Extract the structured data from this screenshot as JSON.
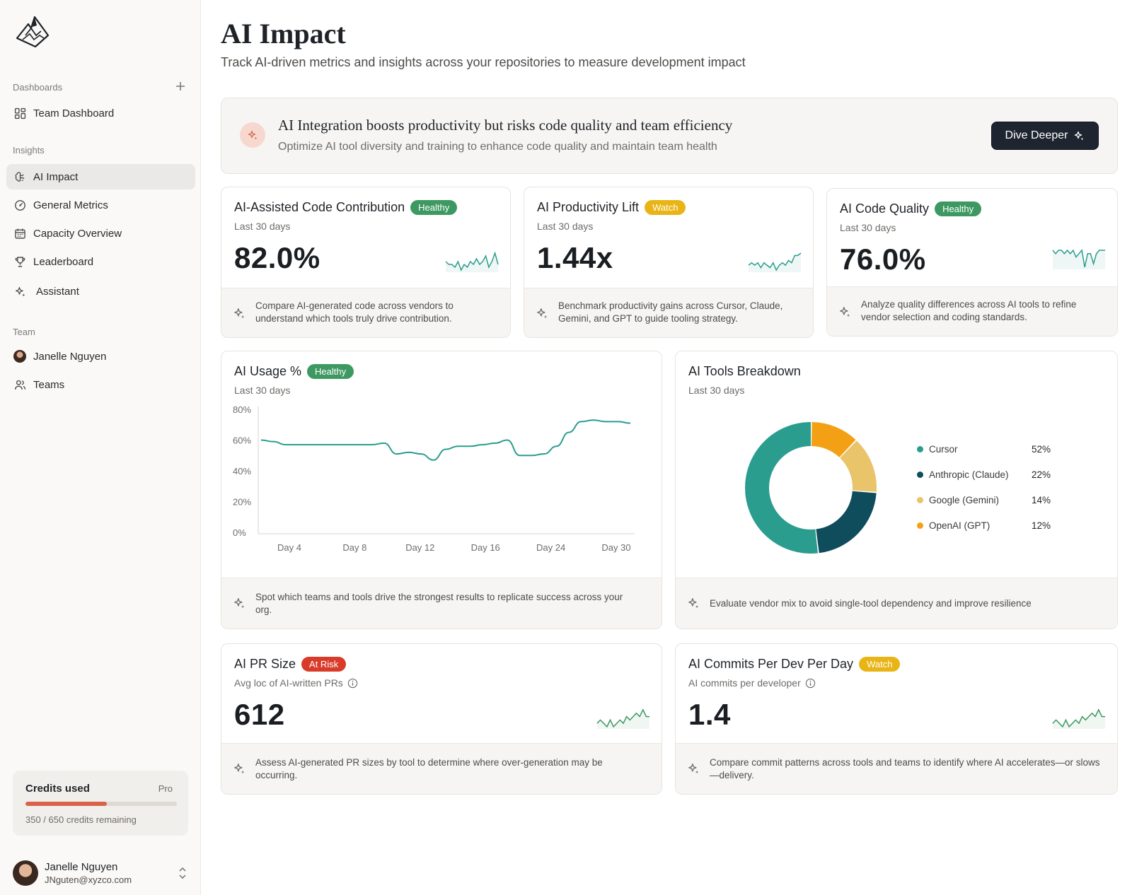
{
  "sidebar": {
    "dashboards_label": "Dashboards",
    "team_dashboard": "Team Dashboard",
    "insights_label": "Insights",
    "items": [
      {
        "label": "AI Impact",
        "icon": "brain-icon"
      },
      {
        "label": "General Metrics",
        "icon": "gauge-icon"
      },
      {
        "label": "Capacity Overview",
        "icon": "calendar-icon"
      },
      {
        "label": "Leaderboard",
        "icon": "trophy-icon"
      },
      {
        "label": "Assistant",
        "icon": "sparkle-icon"
      }
    ],
    "team_label": "Team",
    "team_items": [
      {
        "label": "Janelle Nguyen",
        "icon": "avatar"
      },
      {
        "label": "Teams",
        "icon": "users-icon"
      }
    ],
    "credits": {
      "title": "Credits used",
      "plan": "Pro",
      "used": 350,
      "total": 650,
      "remaining_text": "350 / 650 credits remaining",
      "bar_color": "#d9624a"
    },
    "user": {
      "name": "Janelle Nguyen",
      "email": "JNguten@xyzco.com"
    }
  },
  "header": {
    "title": "AI Impact",
    "subtitle": "Track AI-driven metrics and insights across your repositories to measure development impact"
  },
  "banner": {
    "title": "AI Integration boosts productivity but risks code quality and team efficiency",
    "subtitle": "Optimize AI tool diversity and training to enhance code quality and maintain team health",
    "button": "Dive Deeper"
  },
  "colors": {
    "healthy": "#3d9961",
    "watch": "#e9b415",
    "at_risk": "#d93b2b",
    "teal": "#2a9d8f",
    "green": "#3d9961"
  },
  "cards": {
    "contribution": {
      "title": "AI-Assisted Code Contribution",
      "badge": "Healthy",
      "period": "Last 30 days",
      "value": "82.0%",
      "footer": "Compare AI-generated code across vendors to understand which tools truly drive contribution."
    },
    "productivity": {
      "title": "AI Productivity Lift",
      "badge": "Watch",
      "period": "Last 30 days",
      "value": "1.44x",
      "footer": "Benchmark productivity gains across Cursor, Claude, Gemini, and GPT to guide tooling strategy."
    },
    "quality": {
      "title": "AI Code Quality",
      "badge": "Healthy",
      "period": "Last 30 days",
      "value": "76.0%",
      "footer": "Analyze quality differences across AI tools to refine vendor selection and coding standards."
    },
    "usage": {
      "title": "AI Usage %",
      "badge": "Healthy",
      "period": "Last 30 days",
      "footer": "Spot which teams and tools drive the strongest results to replicate success across your org."
    },
    "tools": {
      "title": "AI Tools Breakdown",
      "period": "Last 30 days",
      "footer": "Evaluate vendor mix to avoid single-tool dependency and improve resilience"
    },
    "pr_size": {
      "title": "AI PR Size",
      "badge": "At Risk",
      "subtitle": "Avg loc of AI-written PRs",
      "value": "612",
      "footer": "Assess AI-generated PR sizes by tool to determine where over-generation may be occurring."
    },
    "commits": {
      "title": "AI Commits Per Dev Per Day",
      "badge": "Watch",
      "subtitle": "AI commits per developer",
      "value": "1.4",
      "footer": "Compare commit patterns across tools and teams to identify where AI accelerates—or slows—delivery."
    }
  },
  "chart_data": [
    {
      "type": "line",
      "title": "AI Usage %",
      "x": [
        1,
        2,
        3,
        4,
        5,
        6,
        7,
        8,
        9,
        10,
        11,
        12,
        13,
        14,
        15,
        16,
        17,
        18,
        19,
        20,
        21,
        22,
        23,
        24,
        25,
        26,
        27,
        28,
        29,
        30,
        31
      ],
      "values": [
        60,
        59,
        57,
        57,
        57,
        57,
        57,
        57,
        57,
        57,
        58,
        51,
        52,
        51,
        47,
        54,
        56,
        56,
        57,
        58,
        60,
        50,
        50,
        51,
        56,
        65,
        72,
        73,
        72,
        72,
        71
      ],
      "tick_labels": [
        "Day 4",
        "Day 8",
        "Day 12",
        "Day 16",
        "Day 24",
        "Day 30"
      ],
      "y_ticks": [
        "80%",
        "60%",
        "40%",
        "20%",
        "0%"
      ],
      "ylim": [
        0,
        80
      ],
      "color": "#2a9d8f"
    },
    {
      "type": "pie",
      "title": "AI Tools Breakdown",
      "slices": [
        {
          "label": "Cursor",
          "value": 52,
          "display": "52%",
          "color": "#2a9d8f"
        },
        {
          "label": "Anthropic (Claude)",
          "value": 22,
          "display": "22%",
          "color": "#0f4c5c"
        },
        {
          "label": "Google (Gemini)",
          "value": 14,
          "display": "14%",
          "color": "#e9c46a"
        },
        {
          "label": "OpenAI (GPT)",
          "value": 12,
          "display": "12%",
          "color": "#f4a014"
        }
      ]
    }
  ],
  "sparklines": {
    "contribution": {
      "color": "#2a9d8f",
      "values": [
        5,
        4,
        4,
        3,
        5,
        2,
        4,
        3,
        5,
        4,
        6,
        4,
        5,
        7,
        3,
        5,
        8,
        4
      ]
    },
    "productivity": {
      "color": "#2a9d8f",
      "values": [
        4,
        5,
        4,
        5,
        3,
        5,
        4,
        3,
        5,
        2,
        4,
        5,
        4,
        6,
        5,
        8,
        8,
        9
      ]
    },
    "quality": {
      "color": "#2a9d8f",
      "values": [
        7,
        6,
        7,
        7,
        6,
        7,
        6,
        7,
        5,
        6,
        7,
        2,
        6,
        6,
        3,
        6,
        7,
        7,
        7
      ]
    },
    "pr_size": {
      "color": "#3d9961",
      "values": [
        2,
        3,
        2,
        1,
        3,
        1,
        2,
        3,
        2,
        4,
        3,
        4,
        5,
        4,
        6,
        4,
        4
      ]
    },
    "commits": {
      "color": "#3d9961",
      "values": [
        2,
        3,
        2,
        1,
        3,
        1,
        2,
        3,
        2,
        4,
        3,
        4,
        5,
        4,
        6,
        4,
        4
      ]
    }
  }
}
